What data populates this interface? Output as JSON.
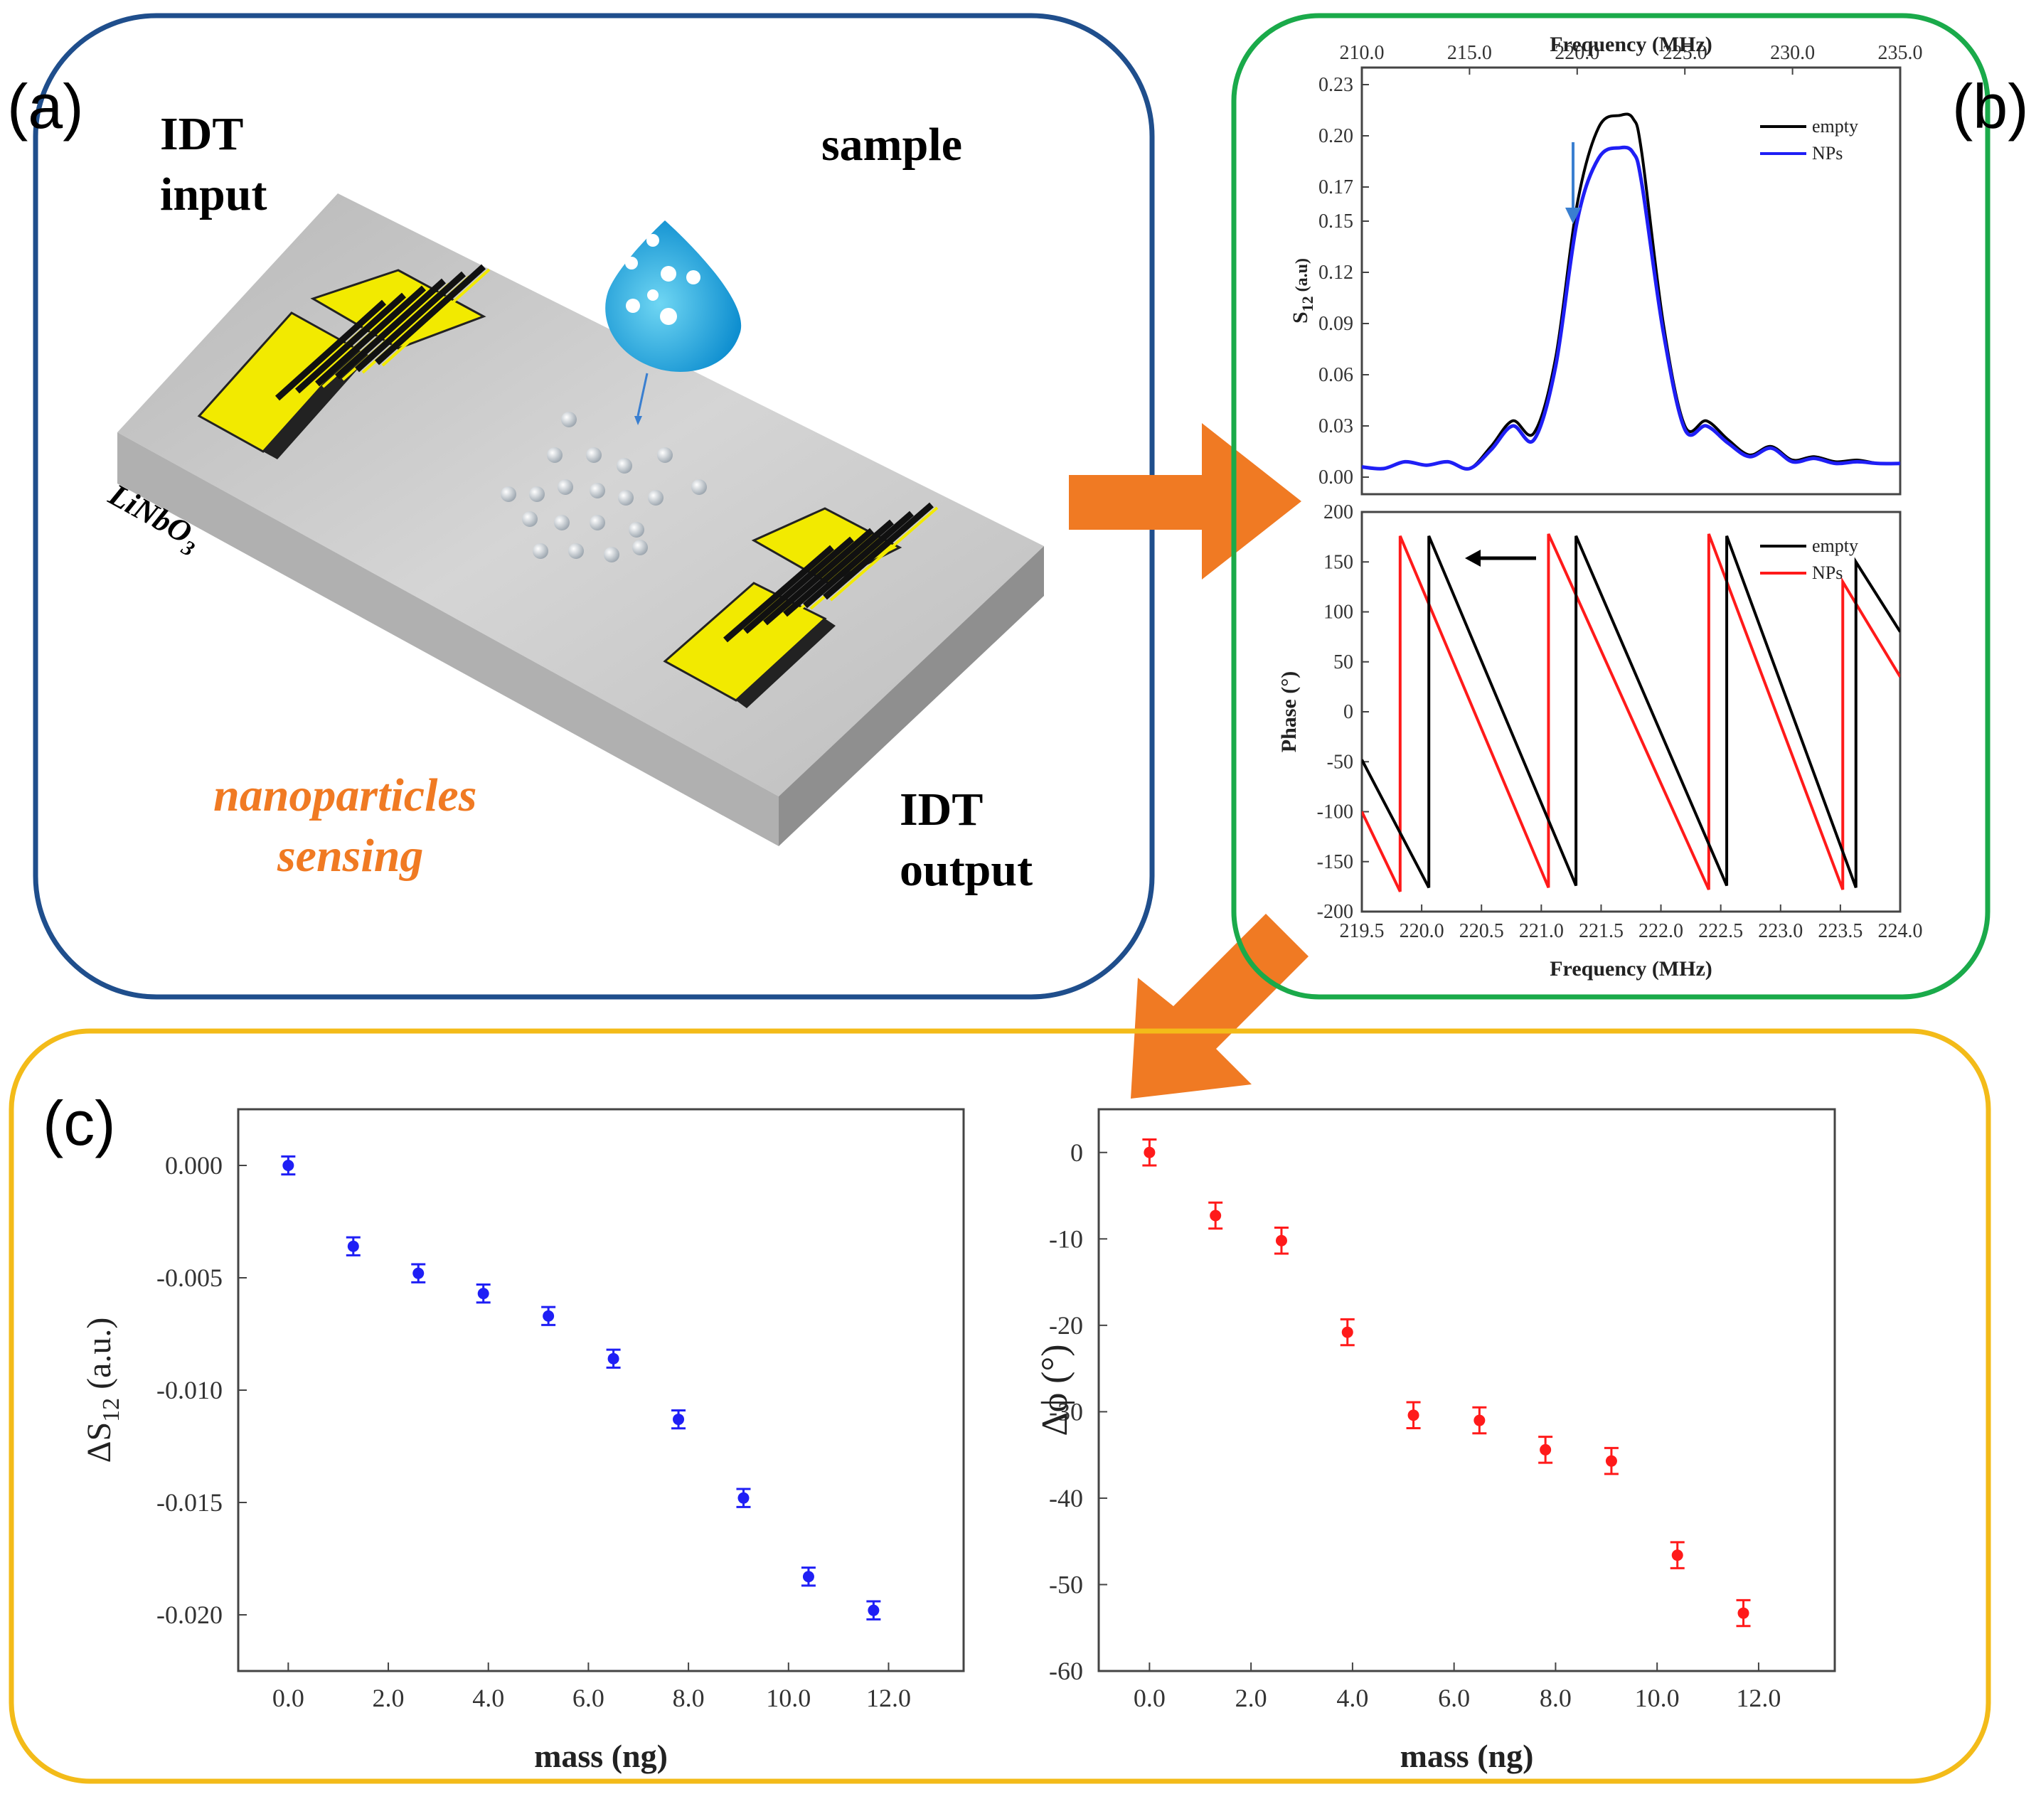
{
  "panel_a": {
    "label": "(a)",
    "idt_input_line1": "IDT",
    "idt_input_line2": "input",
    "sample": "sample",
    "substrate_main": "LiNbO",
    "substrate_sub": "3",
    "sensing_line1": "nanoparticles",
    "sensing_line2": "sensing",
    "idt_output_line1": "IDT",
    "idt_output_line2": "output"
  },
  "panel_b": {
    "label": "(b)"
  },
  "panel_c": {
    "label": "(c)"
  },
  "colors": {
    "panel_a_border": "#1f4e8c",
    "panel_b_border": "#1aaa4a",
    "panel_c_border": "#f3bb19",
    "arrow": "#f07a23",
    "idt_gold": "#f2ea00",
    "empty_line": "#000000",
    "nps_blue": "#1f1ff5",
    "nps_red": "#ff1a1a",
    "sensing_text": "#f07a23"
  },
  "chart_data": [
    {
      "id": "s12-spectrum",
      "type": "line",
      "top_axis_label": "Frequency (MHz)",
      "ylabel_main": "S",
      "ylabel_sub": "12",
      "ylabel_unit": " (a.u)",
      "xlim": [
        210,
        235
      ],
      "ylim": [
        -0.01,
        0.24
      ],
      "xticks": [
        "210.0",
        "215.0",
        "220.0",
        "225.0",
        "230.0",
        "235.0"
      ],
      "yticks": [
        "0.00",
        "0.03",
        "0.06",
        "0.09",
        "0.12",
        "0.15",
        "0.17",
        "0.20",
        "0.23"
      ],
      "ytick_values": [
        0,
        0.03,
        0.06,
        0.09,
        0.12,
        0.15,
        0.17,
        0.2,
        0.23
      ],
      "series": [
        {
          "name": "empty",
          "x": [
            210,
            211,
            212,
            213,
            214,
            215,
            216,
            217,
            218,
            219,
            220,
            221,
            222,
            222.6,
            223,
            224,
            225,
            226,
            227,
            228,
            229,
            230,
            231,
            232,
            233,
            234,
            235
          ],
          "values": [
            0.006,
            0.005,
            0.009,
            0.007,
            0.009,
            0.005,
            0.018,
            0.033,
            0.026,
            0.07,
            0.16,
            0.205,
            0.212,
            0.21,
            0.19,
            0.09,
            0.03,
            0.033,
            0.022,
            0.013,
            0.018,
            0.01,
            0.012,
            0.009,
            0.01,
            0.008,
            0.008
          ]
        },
        {
          "name": "NPs",
          "x": [
            210,
            211,
            212,
            213,
            214,
            215,
            216,
            217,
            218,
            219,
            220,
            221,
            222,
            222.6,
            223,
            224,
            225,
            226,
            227,
            228,
            229,
            230,
            231,
            232,
            233,
            234,
            235
          ],
          "values": [
            0.006,
            0.005,
            0.009,
            0.007,
            0.009,
            0.005,
            0.016,
            0.03,
            0.022,
            0.065,
            0.15,
            0.187,
            0.193,
            0.19,
            0.172,
            0.085,
            0.028,
            0.03,
            0.02,
            0.012,
            0.017,
            0.009,
            0.011,
            0.008,
            0.009,
            0.008,
            0.008
          ]
        }
      ],
      "legend": [
        "empty",
        "NPs"
      ]
    },
    {
      "id": "phase-plot",
      "type": "line",
      "ylabel": "Phase (°)",
      "xlabel": "Frequency (MHz)",
      "xlim": [
        219.5,
        224.0
      ],
      "ylim": [
        -200,
        200
      ],
      "xticks": [
        "219.5",
        "220.0",
        "220.5",
        "221.0",
        "221.5",
        "222.0",
        "222.5",
        "223.0",
        "223.5",
        "224.0"
      ],
      "yticks": [
        "200",
        "150",
        "100",
        "50",
        "0",
        "-50",
        "-100",
        "-150",
        "-200"
      ],
      "ytick_values": [
        200,
        150,
        100,
        50,
        0,
        -50,
        -100,
        -150,
        -200
      ],
      "series": [
        {
          "name": "empty",
          "x": [
            219.5,
            220.06,
            220.06,
            221.29,
            221.29,
            222.55,
            222.55,
            223.63,
            223.63,
            224.0
          ],
          "values": [
            -48,
            -176,
            176,
            -174,
            176,
            -174,
            176,
            -176,
            150,
            80
          ]
        },
        {
          "name": "NPs",
          "x": [
            219.5,
            219.82,
            219.82,
            221.06,
            221.06,
            222.4,
            222.4,
            223.52,
            223.52,
            224.0
          ],
          "values": [
            -100,
            -180,
            176,
            -176,
            178,
            -178,
            178,
            -178,
            130,
            35
          ]
        }
      ],
      "legend": [
        "empty",
        "NPs"
      ]
    },
    {
      "id": "delta-s12",
      "type": "scatter",
      "xlabel": "mass (ng)",
      "ylabel_main": "ΔS",
      "ylabel_sub": "12",
      "ylabel_unit": " (a.u.)",
      "xlim": [
        -1.0,
        13.5
      ],
      "ylim": [
        -0.0225,
        0.0025
      ],
      "xticks": [
        "0.0",
        "2.0",
        "4.0",
        "6.0",
        "8.0",
        "10.0",
        "12.0"
      ],
      "xtick_values": [
        0,
        2,
        4,
        6,
        8,
        10,
        12
      ],
      "yticks": [
        "0.000",
        "-0.005",
        "-0.010",
        "-0.015",
        "-0.020"
      ],
      "ytick_values": [
        0,
        -0.005,
        -0.01,
        -0.015,
        -0.02
      ],
      "x": [
        0,
        1.3,
        2.6,
        3.9,
        5.2,
        6.5,
        7.8,
        9.1,
        10.4,
        11.7
      ],
      "values": [
        0.0,
        -0.0036,
        -0.0048,
        -0.0057,
        -0.0067,
        -0.0086,
        -0.0113,
        -0.0148,
        -0.0183,
        -0.0198
      ],
      "errors": [
        0.0004,
        0.0004,
        0.0004,
        0.0004,
        0.0004,
        0.0004,
        0.0004,
        0.0004,
        0.0004,
        0.0004
      ],
      "color": "#1f1ff5"
    },
    {
      "id": "delta-phi",
      "type": "scatter",
      "xlabel": "mass (ng)",
      "ylabel": "Δϕ (°)",
      "xlim": [
        -1.0,
        13.5
      ],
      "ylim": [
        -60,
        5
      ],
      "xticks": [
        "0.0",
        "2.0",
        "4.0",
        "6.0",
        "8.0",
        "10.0",
        "12.0"
      ],
      "xtick_values": [
        0,
        2,
        4,
        6,
        8,
        10,
        12
      ],
      "yticks": [
        "0",
        "-10",
        "-20",
        "-30",
        "-40",
        "-50",
        "-60"
      ],
      "ytick_values": [
        0,
        -10,
        -20,
        -30,
        -40,
        -50,
        -60
      ],
      "x": [
        0,
        1.3,
        2.6,
        3.9,
        5.2,
        6.5,
        7.8,
        9.1,
        10.4,
        11.7
      ],
      "values": [
        0,
        -7.3,
        -10.2,
        -20.8,
        -30.4,
        -31.0,
        -34.4,
        -35.7,
        -46.6,
        -53.3
      ],
      "errors": [
        1.5,
        1.5,
        1.5,
        1.5,
        1.5,
        1.5,
        1.5,
        1.5,
        1.5,
        1.5
      ],
      "color": "#ff1a1a"
    }
  ]
}
